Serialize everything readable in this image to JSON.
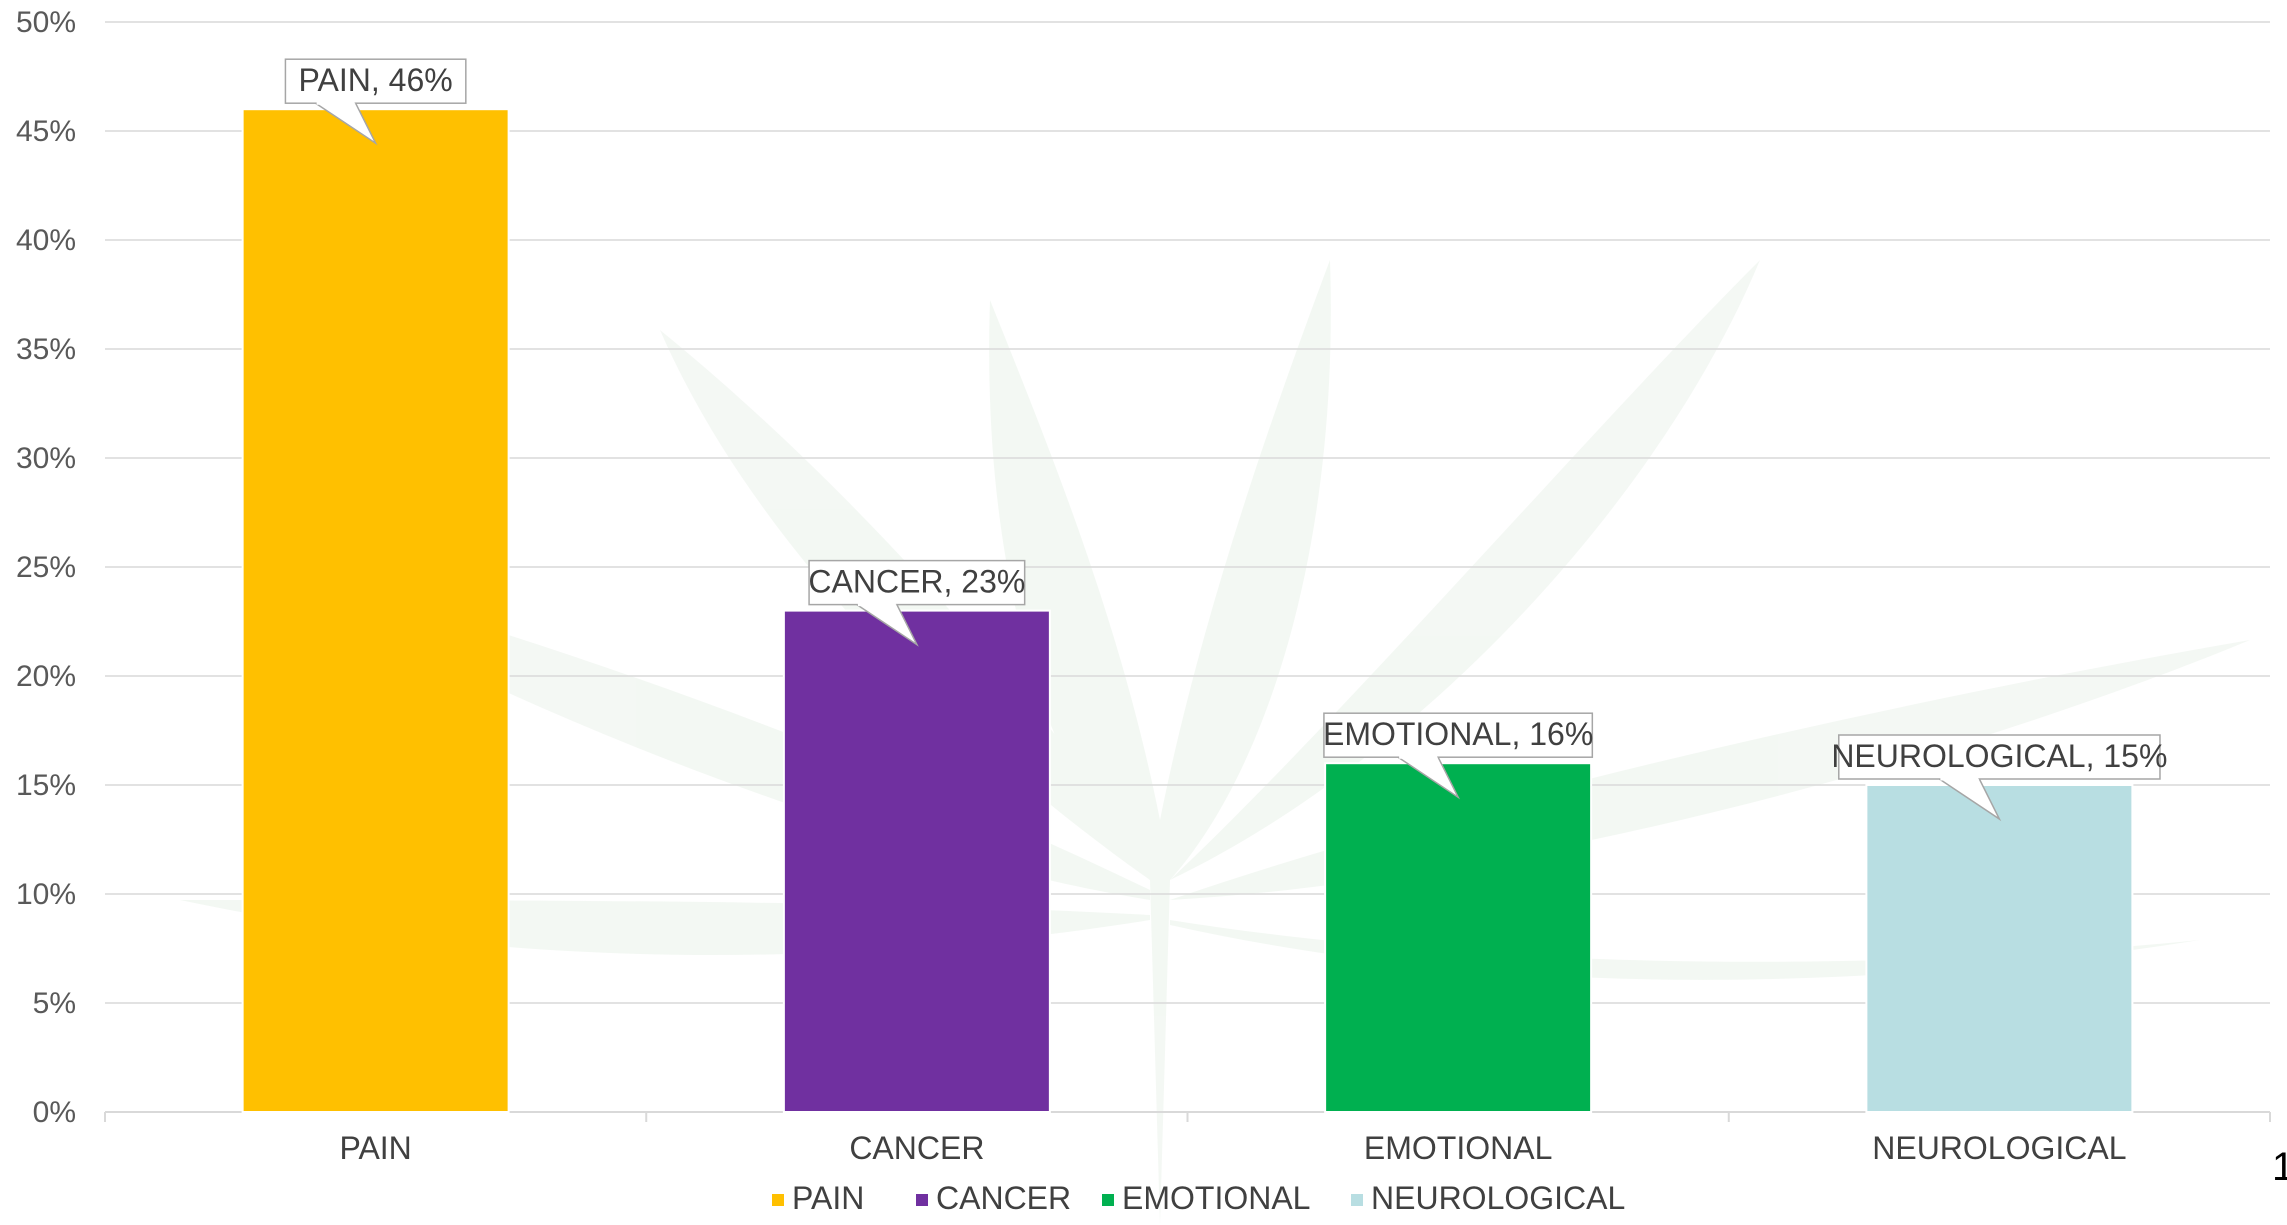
{
  "chart_data": {
    "type": "bar",
    "categories": [
      "PAIN",
      "CANCER",
      "EMOTIONAL",
      "NEUROLOGICAL"
    ],
    "values": [
      46,
      23,
      16,
      15
    ],
    "colors": [
      "#FFC000",
      "#7030A0",
      "#00B050",
      "#B8DEE2"
    ],
    "data_labels": [
      "PAIN, 46%",
      "CANCER, 23%",
      "EMOTIONAL, 16%",
      "NEUROLOGICAL, 15%"
    ],
    "yticks": [
      "0%",
      "5%",
      "10%",
      "15%",
      "20%",
      "25%",
      "30%",
      "35%",
      "40%",
      "45%",
      "50%"
    ],
    "ylim": [
      0,
      50
    ],
    "y_unit": "%",
    "grid": true,
    "legend": {
      "placement": "bottom",
      "entries": [
        "PAIN",
        "CANCER",
        "EMOTIONAL",
        "NEUROLOGICAL"
      ]
    },
    "background": "cannabis-leaf-watermark"
  },
  "corner_text": "1"
}
